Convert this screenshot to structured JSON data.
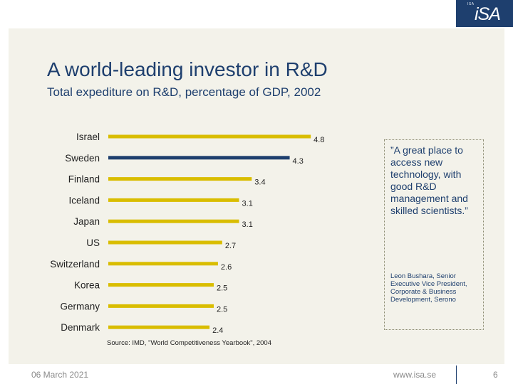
{
  "logo": {
    "small": "ISA",
    "text": "iSA"
  },
  "colors": {
    "bar": "#d9bd00",
    "highlight": "#1e3f6e"
  },
  "chart_data": {
    "type": "bar",
    "orientation": "horizontal",
    "title": "A world-leading investor in R&D",
    "subtitle": "Total expediture on R&D, percentage of GDP, 2002",
    "categories": [
      "Israel",
      "Sweden",
      "Finland",
      "Iceland",
      "Japan",
      "US",
      "Switzerland",
      "Korea",
      "Germany",
      "Denmark"
    ],
    "values": [
      4.8,
      4.3,
      3.4,
      3.1,
      3.1,
      2.7,
      2.6,
      2.5,
      2.5,
      2.4
    ],
    "value_labels": [
      "4.8",
      "4.3",
      "3.4",
      "3.1",
      "3.1",
      "2.7",
      "2.6",
      "2.5",
      "2.5",
      "2.4"
    ],
    "highlight": "Sweden",
    "xlim": [
      0,
      5
    ],
    "source": "Source: IMD, \"World Competitiveness Yearbook\", 2004"
  },
  "quote": {
    "text": "”A great place to access new technology, with good R&D management and skilled scientists.”",
    "author": "Leon Bushara, Senior Executive Vice President, Corporate & Business Development, Serono"
  },
  "footer": {
    "date": "06 March 2021",
    "url": "www.isa.se",
    "page": "6"
  }
}
